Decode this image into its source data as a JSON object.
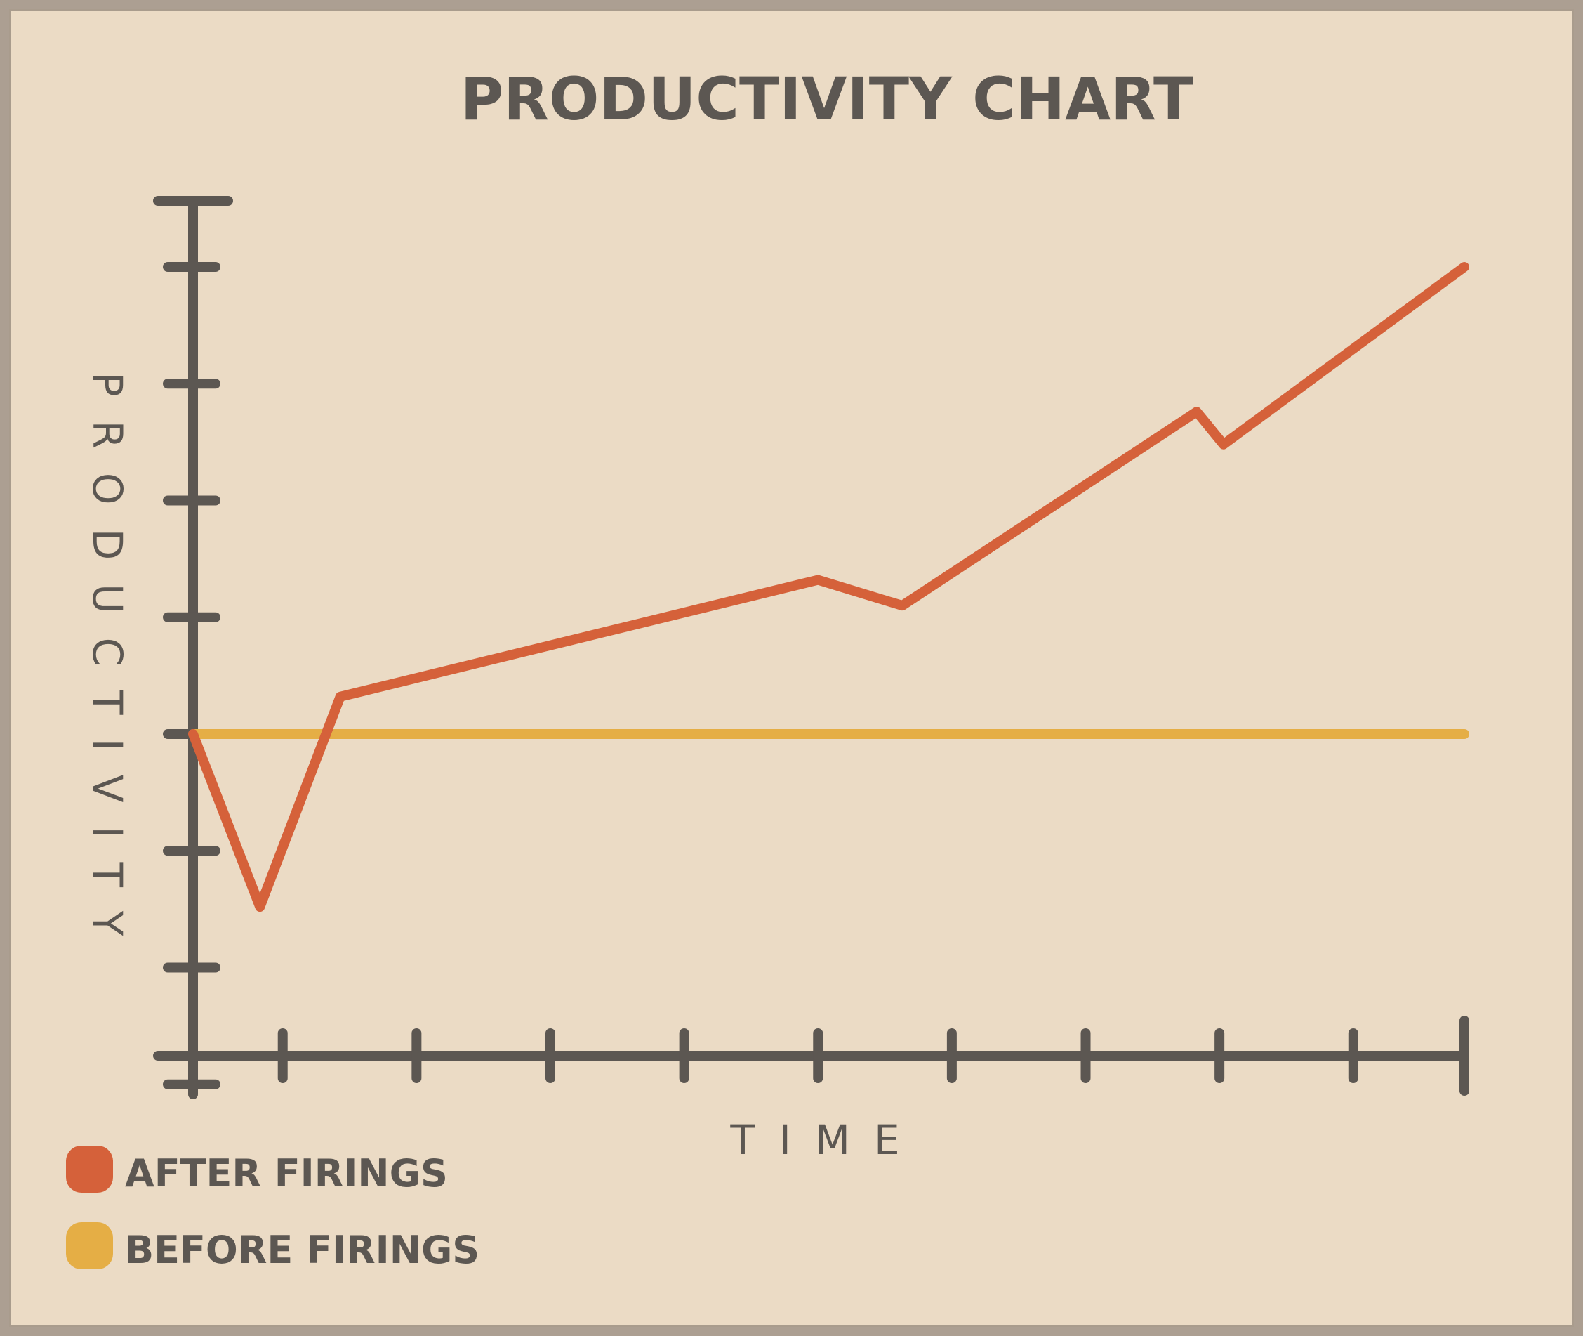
{
  "chart_data": {
    "type": "line",
    "title": "PRODUCTIVITY CHART",
    "xlabel": "TIME",
    "ylabel": "PRODUCTIVITY",
    "xlim": [
      0,
      9.5
    ],
    "ylim": [
      -8.0,
      7.2
    ],
    "x_ticks": [
      0,
      0.67,
      1.67,
      2.67,
      3.67,
      4.67,
      5.67,
      6.67,
      7.67,
      8.67,
      9.5
    ],
    "y_ticks": [
      -7.5,
      -5,
      -2.5,
      0,
      2.5,
      5,
      7.5,
      10
    ],
    "legend_position": "bottom-left",
    "grid": false,
    "series": [
      {
        "name": "AFTER FIRINGS",
        "color": "#d5613a",
        "x": [
          0,
          0.5,
          1.1,
          4.67,
          5.3,
          7.5,
          7.7,
          9.5
        ],
        "y": [
          0,
          -3.7,
          0.8,
          3.3,
          2.75,
          6.9,
          6.2,
          10
        ]
      },
      {
        "name": "BEFORE FIRINGS",
        "color": "#e5ae45",
        "x": [
          0,
          9.5
        ],
        "y": [
          0,
          0
        ]
      }
    ]
  },
  "colors": {
    "axis": "#5c5752",
    "text": "#5c5752",
    "background": "#ebdbc5",
    "border": "#ac9f92"
  }
}
